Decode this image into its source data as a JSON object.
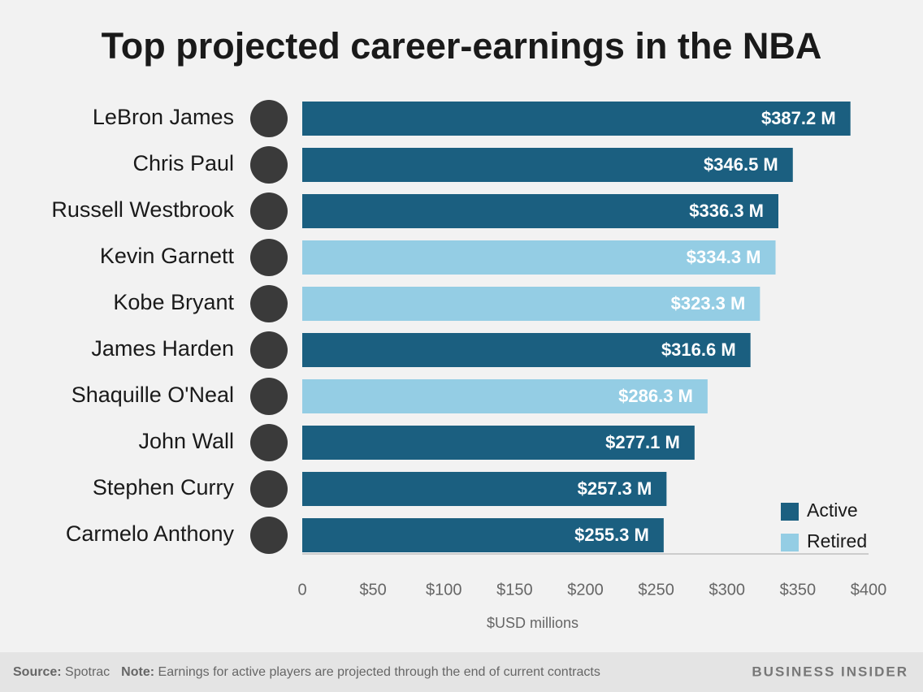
{
  "chart_data": {
    "type": "bar",
    "orientation": "horizontal",
    "title": "Top projected career-earnings in the NBA",
    "categories": [
      "LeBron James",
      "Chris Paul",
      "Russell Westbrook",
      "Kevin Garnett",
      "Kobe Bryant",
      "James Harden",
      "Shaquille O'Neal",
      "John Wall",
      "Stephen Curry",
      "Carmelo Anthony"
    ],
    "series": [
      {
        "name": "Active",
        "color": "#1b5f80",
        "values": [
          387.2,
          346.5,
          336.3,
          null,
          null,
          316.6,
          null,
          277.1,
          257.3,
          255.3
        ],
        "value_labels": [
          "$387.2 M",
          "$346.5 M",
          "$336.3 M",
          null,
          null,
          "$316.6 M",
          null,
          "$277.1 M",
          "$257.3 M",
          "$255.3 M"
        ]
      },
      {
        "name": "Retired",
        "color": "#94cde4",
        "values": [
          null,
          null,
          null,
          334.3,
          323.3,
          null,
          286.3,
          null,
          null,
          null
        ],
        "value_labels": [
          null,
          null,
          null,
          "$334.3 M",
          "$323.3 M",
          null,
          "$286.3 M",
          null,
          null,
          null
        ]
      }
    ],
    "xlim": [
      0,
      400
    ],
    "xticks": [
      0,
      {
        "value": 50,
        "label": "$50"
      },
      {
        "value": 100,
        "label": "$100"
      },
      {
        "value": 150,
        "label": "$150"
      },
      {
        "value": 200,
        "label": "$200"
      },
      {
        "value": 250,
        "label": "$250"
      },
      {
        "value": 300,
        "label": "$300"
      },
      {
        "value": 350,
        "label": "$350"
      },
      {
        "value": 400,
        "label": "$400"
      }
    ],
    "xlabel": "$USD millions",
    "grid": false,
    "legend": "lower right"
  },
  "footer": {
    "source_label": "Source:",
    "source": "Spotrac",
    "note_label": "Note:",
    "note": "Earnings for active players are projected through the end of current contracts",
    "brand": "BUSINESS INSIDER"
  }
}
